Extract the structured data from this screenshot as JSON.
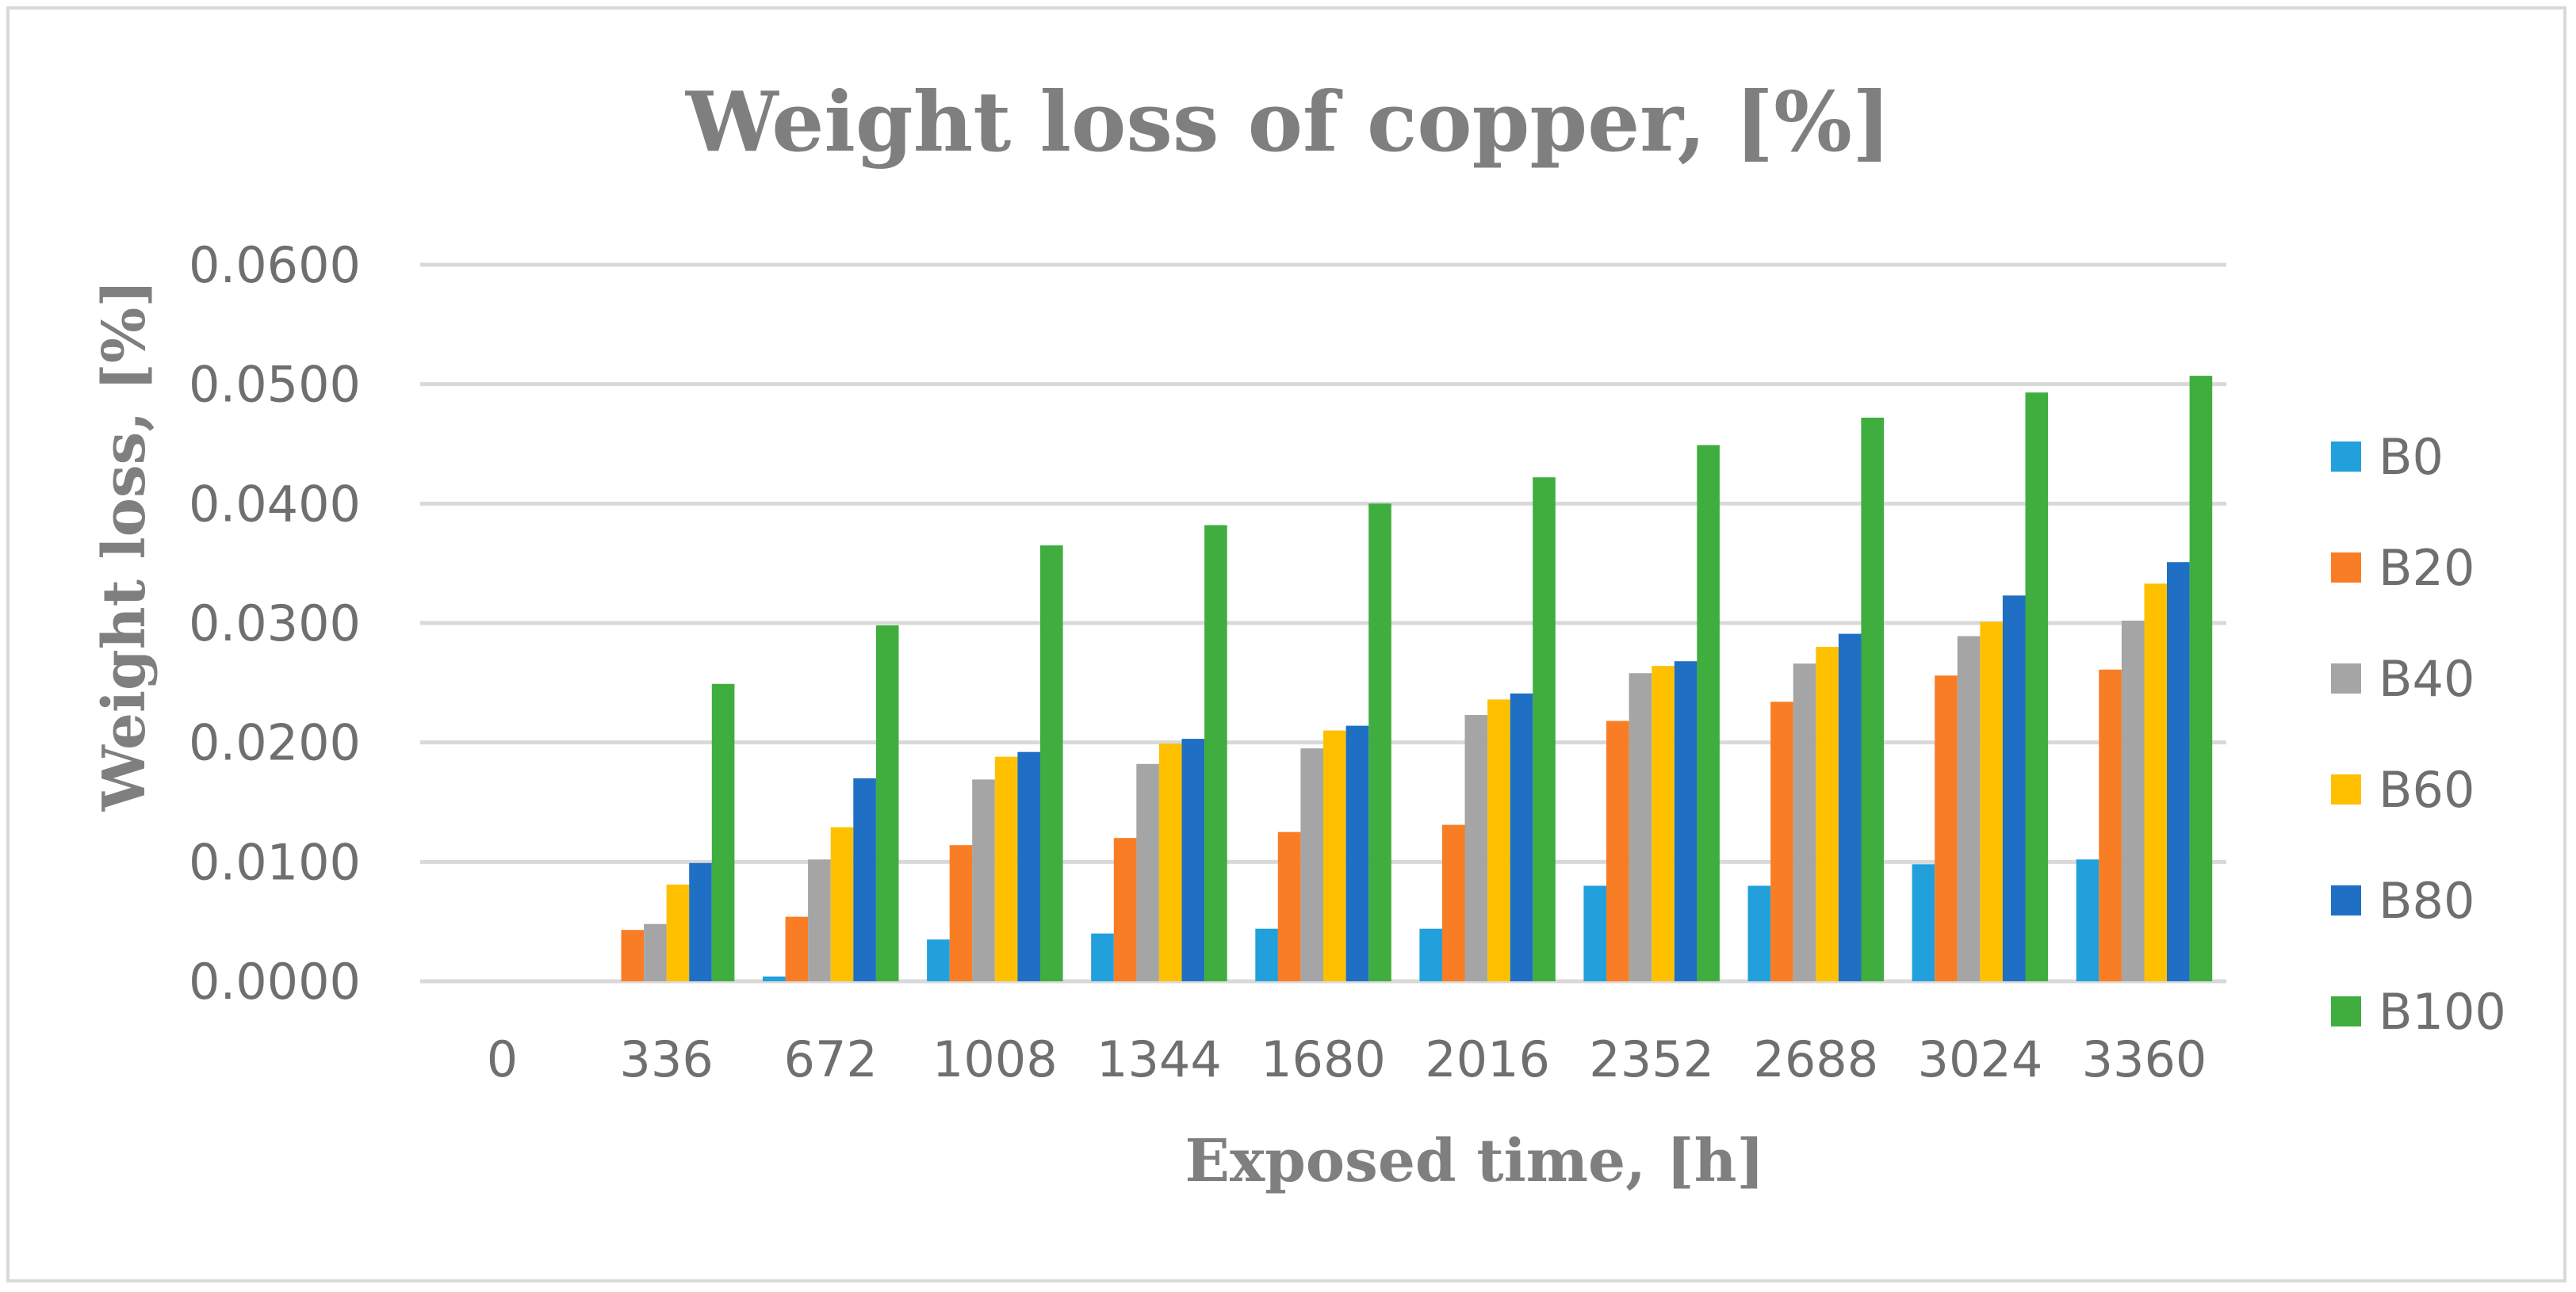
{
  "chart_data": {
    "type": "bar",
    "title": "Weight loss of copper, [%]",
    "xlabel": "Exposed time, [h]",
    "ylabel": "Weight loss, [%]",
    "ylim": [
      0,
      0.06
    ],
    "yticks": [
      "0.0000",
      "0.0100",
      "0.0200",
      "0.0300",
      "0.0400",
      "0.0500",
      "0.0600"
    ],
    "ytick_values": [
      0,
      0.01,
      0.02,
      0.03,
      0.04,
      0.05,
      0.06
    ],
    "grid": true,
    "legend_position": "right",
    "categories": [
      "0",
      "336",
      "672",
      "1008",
      "1344",
      "1680",
      "2016",
      "2352",
      "2688",
      "3024",
      "3360"
    ],
    "series": [
      {
        "name": "B0",
        "color": "#22a0dc",
        "values": [
          0,
          0,
          0.0004,
          0.0035,
          0.004,
          0.0044,
          0.0044,
          0.008,
          0.008,
          0.0098,
          0.0102
        ]
      },
      {
        "name": "B20",
        "color": "#f97d24",
        "values": [
          0,
          0.0043,
          0.0054,
          0.0114,
          0.012,
          0.0125,
          0.0131,
          0.0218,
          0.0234,
          0.0256,
          0.0261
        ]
      },
      {
        "name": "B40",
        "color": "#a5a5a5",
        "values": [
          0,
          0.0048,
          0.0102,
          0.0169,
          0.0182,
          0.0195,
          0.0223,
          0.0258,
          0.0266,
          0.0289,
          0.0302
        ]
      },
      {
        "name": "B60",
        "color": "#ffc000",
        "values": [
          0,
          0.0081,
          0.0129,
          0.0188,
          0.0199,
          0.021,
          0.0236,
          0.0264,
          0.028,
          0.0301,
          0.0333
        ]
      },
      {
        "name": "B80",
        "color": "#1f6fc5",
        "values": [
          0,
          0.0099,
          0.017,
          0.0192,
          0.0203,
          0.0214,
          0.0241,
          0.0268,
          0.0291,
          0.0323,
          0.0351
        ]
      },
      {
        "name": "B100",
        "color": "#3fae3f",
        "values": [
          0,
          0.0249,
          0.0298,
          0.0365,
          0.0382,
          0.04,
          0.0422,
          0.0449,
          0.0472,
          0.0493,
          0.0507
        ]
      }
    ]
  }
}
